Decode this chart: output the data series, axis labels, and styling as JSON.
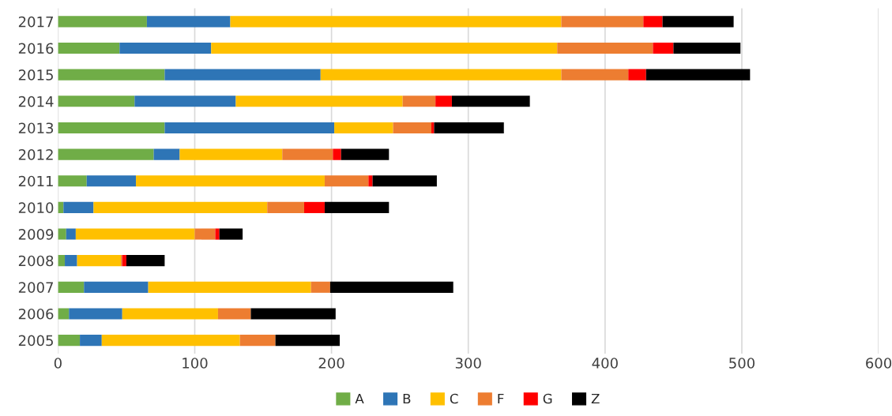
{
  "chart_data": {
    "type": "bar",
    "orientation": "horizontal",
    "stacked": true,
    "categories": [
      "2017",
      "2016",
      "2015",
      "2014",
      "2013",
      "2012",
      "2011",
      "2010",
      "2009",
      "2008",
      "2007",
      "2006",
      "2005"
    ],
    "series": [
      {
        "name": "A",
        "color": "#70ad47",
        "values": [
          65,
          45,
          78,
          56,
          78,
          70,
          21,
          4,
          6,
          5,
          19,
          8,
          16
        ]
      },
      {
        "name": "B",
        "color": "#2e75b6",
        "values": [
          61,
          67,
          114,
          74,
          124,
          19,
          36,
          22,
          7,
          9,
          47,
          39,
          16
        ]
      },
      {
        "name": "C",
        "color": "#ffc000",
        "values": [
          242,
          253,
          176,
          122,
          43,
          75,
          138,
          127,
          87,
          32,
          119,
          70,
          101
        ]
      },
      {
        "name": "F",
        "color": "#ed7d31",
        "values": [
          60,
          70,
          49,
          24,
          28,
          37,
          32,
          27,
          15,
          1,
          14,
          24,
          26
        ]
      },
      {
        "name": "G",
        "color": "#ff0000",
        "values": [
          14,
          15,
          13,
          12,
          2,
          6,
          3,
          15,
          3,
          3,
          null,
          null,
          null
        ]
      },
      {
        "name": "Z",
        "color": "#000000",
        "values": [
          52,
          49,
          76,
          57,
          51,
          35,
          47,
          47,
          17,
          28,
          90,
          62,
          47
        ]
      }
    ],
    "xlim": [
      0,
      600
    ],
    "xticks": [
      0,
      100,
      200,
      300,
      400,
      500,
      600
    ],
    "grid": "x",
    "legend": "bottom"
  }
}
